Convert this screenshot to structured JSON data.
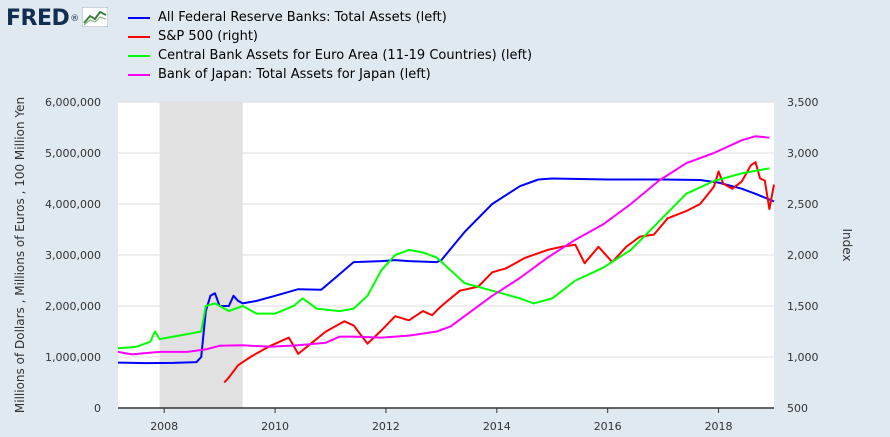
{
  "header": {
    "logo_text": "FRED",
    "logo_mark": "®",
    "logo_icon": "line-chart-icon"
  },
  "chart_data": {
    "type": "line",
    "xlim": [
      "2007-03",
      "2019-01"
    ],
    "ylim_left": [
      0,
      6000000
    ],
    "ylim_right": [
      500,
      3500
    ],
    "x_ticks": [
      "2008",
      "2010",
      "2012",
      "2014",
      "2016",
      "2018"
    ],
    "y_ticks_left": [
      "0",
      "1,000,000",
      "2,000,000",
      "3,000,000",
      "4,000,000",
      "5,000,000",
      "6,000,000"
    ],
    "y_ticks_right": [
      "500",
      "1,000",
      "1,500",
      "2,000",
      "2,500",
      "3,000",
      "3,500"
    ],
    "ylabel_left": "Millions of Dollars , Millions of Euros , 100 Million Yen",
    "ylabel_right": "Index",
    "recession": {
      "start": "2007-12",
      "end": "2009-06"
    },
    "grid": "horizontal",
    "legend_position": "top-left",
    "colors": {
      "plot_background": "#ffffff",
      "page_background": "#e1e9f0",
      "recession_shade": "#e1e1e1",
      "grid": "#dcdcdc"
    },
    "series": [
      {
        "name": "All Federal Reserve Banks: Total Assets (left)",
        "axis": "left",
        "color": "#0000ff",
        "points": [
          [
            "2007-03",
            890000
          ],
          [
            "2007-09",
            880000
          ],
          [
            "2008-03",
            885000
          ],
          [
            "2008-08",
            900000
          ],
          [
            "2008-09",
            1000000
          ],
          [
            "2008-10",
            1900000
          ],
          [
            "2008-11",
            2200000
          ],
          [
            "2008-12",
            2250000
          ],
          [
            "2009-01",
            2000000
          ],
          [
            "2009-03",
            2000000
          ],
          [
            "2009-04",
            2200000
          ],
          [
            "2009-05",
            2100000
          ],
          [
            "2009-06",
            2050000
          ],
          [
            "2009-09",
            2100000
          ],
          [
            "2010-01",
            2200000
          ],
          [
            "2010-06",
            2330000
          ],
          [
            "2010-11",
            2320000
          ],
          [
            "2011-02",
            2550000
          ],
          [
            "2011-06",
            2860000
          ],
          [
            "2011-12",
            2880000
          ],
          [
            "2012-03",
            2900000
          ],
          [
            "2012-06",
            2880000
          ],
          [
            "2012-12",
            2860000
          ],
          [
            "2013-01",
            2900000
          ],
          [
            "2013-06",
            3450000
          ],
          [
            "2013-12",
            4000000
          ],
          [
            "2014-06",
            4350000
          ],
          [
            "2014-10",
            4480000
          ],
          [
            "2015-01",
            4500000
          ],
          [
            "2016-01",
            4480000
          ],
          [
            "2017-01",
            4480000
          ],
          [
            "2017-09",
            4470000
          ],
          [
            "2018-01",
            4420000
          ],
          [
            "2018-06",
            4300000
          ],
          [
            "2018-09",
            4200000
          ],
          [
            "2019-01",
            4050000
          ]
        ]
      },
      {
        "name": "S&P 500 (right)",
        "axis": "right",
        "color": "#ff0000",
        "points": [
          [
            "2009-02",
            750
          ],
          [
            "2009-03",
            800
          ],
          [
            "2009-05",
            920
          ],
          [
            "2009-08",
            1010
          ],
          [
            "2009-12",
            1110
          ],
          [
            "2010-04",
            1190
          ],
          [
            "2010-06",
            1030
          ],
          [
            "2010-09",
            1140
          ],
          [
            "2010-12",
            1250
          ],
          [
            "2011-04",
            1350
          ],
          [
            "2011-06",
            1310
          ],
          [
            "2011-09",
            1130
          ],
          [
            "2011-12",
            1260
          ],
          [
            "2012-03",
            1400
          ],
          [
            "2012-06",
            1360
          ],
          [
            "2012-09",
            1450
          ],
          [
            "2012-11",
            1410
          ],
          [
            "2013-01",
            1500
          ],
          [
            "2013-05",
            1650
          ],
          [
            "2013-09",
            1690
          ],
          [
            "2013-12",
            1830
          ],
          [
            "2014-03",
            1870
          ],
          [
            "2014-07",
            1970
          ],
          [
            "2014-12",
            2050
          ],
          [
            "2015-03",
            2080
          ],
          [
            "2015-06",
            2100
          ],
          [
            "2015-08",
            1920
          ],
          [
            "2015-11",
            2080
          ],
          [
            "2016-02",
            1930
          ],
          [
            "2016-05",
            2080
          ],
          [
            "2016-08",
            2180
          ],
          [
            "2016-11",
            2200
          ],
          [
            "2017-02",
            2360
          ],
          [
            "2017-06",
            2430
          ],
          [
            "2017-09",
            2500
          ],
          [
            "2017-12",
            2670
          ],
          [
            "2018-01",
            2820
          ],
          [
            "2018-02",
            2700
          ],
          [
            "2018-04",
            2650
          ],
          [
            "2018-06",
            2720
          ],
          [
            "2018-08",
            2880
          ],
          [
            "2018-09",
            2910
          ],
          [
            "2018-10",
            2750
          ],
          [
            "2018-11",
            2730
          ],
          [
            "2018-12",
            2450
          ],
          [
            "2019-01",
            2690
          ]
        ]
      },
      {
        "name": "Central Bank Assets for Euro Area (11-19 Countries) (left)",
        "axis": "left",
        "color": "#00ff00",
        "points": [
          [
            "2007-03",
            1170000
          ],
          [
            "2007-07",
            1200000
          ],
          [
            "2007-10",
            1300000
          ],
          [
            "2007-11",
            1500000
          ],
          [
            "2007-12",
            1350000
          ],
          [
            "2008-03",
            1400000
          ],
          [
            "2008-06",
            1450000
          ],
          [
            "2008-09",
            1500000
          ],
          [
            "2008-10",
            2000000
          ],
          [
            "2008-12",
            2050000
          ],
          [
            "2009-03",
            1900000
          ],
          [
            "2009-06",
            2000000
          ],
          [
            "2009-09",
            1850000
          ],
          [
            "2010-01",
            1850000
          ],
          [
            "2010-05",
            2000000
          ],
          [
            "2010-07",
            2150000
          ],
          [
            "2010-10",
            1950000
          ],
          [
            "2011-03",
            1900000
          ],
          [
            "2011-06",
            1950000
          ],
          [
            "2011-09",
            2200000
          ],
          [
            "2011-12",
            2700000
          ],
          [
            "2012-03",
            3000000
          ],
          [
            "2012-06",
            3100000
          ],
          [
            "2012-09",
            3050000
          ],
          [
            "2012-12",
            2950000
          ],
          [
            "2013-03",
            2700000
          ],
          [
            "2013-06",
            2450000
          ],
          [
            "2013-12",
            2300000
          ],
          [
            "2014-06",
            2150000
          ],
          [
            "2014-09",
            2050000
          ],
          [
            "2015-01",
            2150000
          ],
          [
            "2015-06",
            2500000
          ],
          [
            "2015-12",
            2750000
          ],
          [
            "2016-06",
            3100000
          ],
          [
            "2016-12",
            3650000
          ],
          [
            "2017-06",
            4200000
          ],
          [
            "2017-12",
            4450000
          ],
          [
            "2018-06",
            4600000
          ],
          [
            "2018-12",
            4700000
          ]
        ]
      },
      {
        "name": "Bank of Japan: Total Assets for Japan (left)",
        "axis": "left",
        "color": "#ff00ff",
        "points": [
          [
            "2007-03",
            1100000
          ],
          [
            "2007-06",
            1050000
          ],
          [
            "2007-12",
            1100000
          ],
          [
            "2008-06",
            1100000
          ],
          [
            "2008-10",
            1150000
          ],
          [
            "2009-01",
            1220000
          ],
          [
            "2009-06",
            1230000
          ],
          [
            "2009-12",
            1200000
          ],
          [
            "2010-06",
            1230000
          ],
          [
            "2010-12",
            1280000
          ],
          [
            "2011-03",
            1400000
          ],
          [
            "2011-06",
            1400000
          ],
          [
            "2011-12",
            1380000
          ],
          [
            "2012-06",
            1420000
          ],
          [
            "2012-12",
            1500000
          ],
          [
            "2013-03",
            1600000
          ],
          [
            "2013-06",
            1800000
          ],
          [
            "2013-12",
            2200000
          ],
          [
            "2014-06",
            2550000
          ],
          [
            "2014-12",
            2950000
          ],
          [
            "2015-06",
            3300000
          ],
          [
            "2015-12",
            3600000
          ],
          [
            "2016-06",
            4000000
          ],
          [
            "2016-12",
            4450000
          ],
          [
            "2017-06",
            4800000
          ],
          [
            "2017-12",
            5000000
          ],
          [
            "2018-06",
            5250000
          ],
          [
            "2018-09",
            5330000
          ],
          [
            "2018-12",
            5300000
          ]
        ]
      }
    ]
  }
}
